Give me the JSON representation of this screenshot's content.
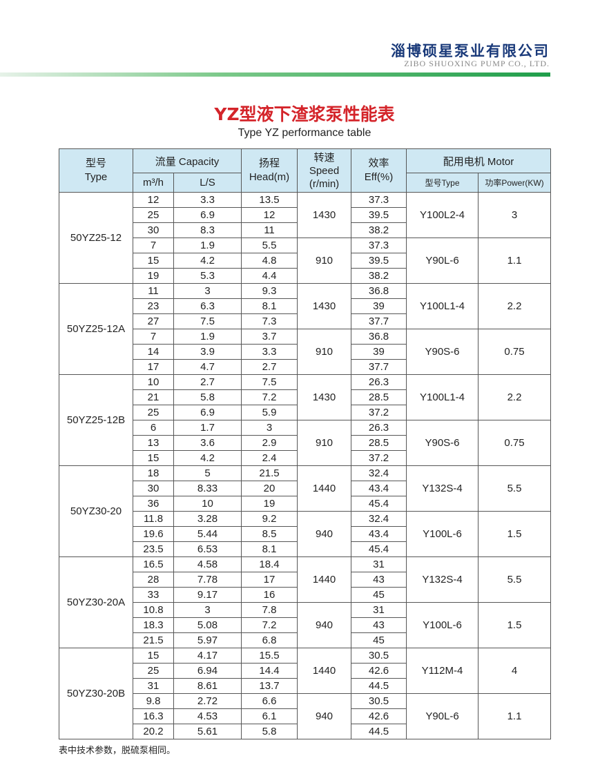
{
  "header": {
    "company_cn": "淄博硕星泵业有限公司",
    "company_en": "ZIBO SHUOXING PUMP CO., LTD."
  },
  "title": "YZ型液下渣浆泵性能表",
  "subtitle": "Type YZ performance table",
  "columns": {
    "type": "型号\nType",
    "capacity": "流量 Capacity",
    "m3h": "m³/h",
    "ls": "L/S",
    "head": "扬程\nHead(m)",
    "speed": "转速\nSpeed\n(r/min)",
    "eff": "效率\nEff(%)",
    "motor": "配用电机 Motor",
    "motor_type": "型号Type",
    "power": "功率Power(KW)"
  },
  "models": [
    {
      "name": "50YZ25-12",
      "subs": [
        {
          "speed": "1430",
          "motor": "Y100L2-4",
          "power": "3",
          "rows": [
            [
              "12",
              "3.3",
              "13.5",
              "37.3"
            ],
            [
              "25",
              "6.9",
              "12",
              "39.5"
            ],
            [
              "30",
              "8.3",
              "11",
              "38.2"
            ]
          ]
        },
        {
          "speed": "910",
          "motor": "Y90L-6",
          "power": "1.1",
          "rows": [
            [
              "7",
              "1.9",
              "5.5",
              "37.3"
            ],
            [
              "15",
              "4.2",
              "4.8",
              "39.5"
            ],
            [
              "19",
              "5.3",
              "4.4",
              "38.2"
            ]
          ]
        }
      ]
    },
    {
      "name": "50YZ25-12A",
      "subs": [
        {
          "speed": "1430",
          "motor": "Y100L1-4",
          "power": "2.2",
          "rows": [
            [
              "11",
              "3",
              "9.3",
              "36.8"
            ],
            [
              "23",
              "6.3",
              "8.1",
              "39"
            ],
            [
              "27",
              "7.5",
              "7.3",
              "37.7"
            ]
          ]
        },
        {
          "speed": "910",
          "motor": "Y90S-6",
          "power": "0.75",
          "rows": [
            [
              "7",
              "1.9",
              "3.7",
              "36.8"
            ],
            [
              "14",
              "3.9",
              "3.3",
              "39"
            ],
            [
              "17",
              "4.7",
              "2.7",
              "37.7"
            ]
          ]
        }
      ]
    },
    {
      "name": "50YZ25-12B",
      "subs": [
        {
          "speed": "1430",
          "motor": "Y100L1-4",
          "power": "2.2",
          "rows": [
            [
              "10",
              "2.7",
              "7.5",
              "26.3"
            ],
            [
              "21",
              "5.8",
              "7.2",
              "28.5"
            ],
            [
              "25",
              "6.9",
              "5.9",
              "37.2"
            ]
          ]
        },
        {
          "speed": "910",
          "motor": "Y90S-6",
          "power": "0.75",
          "rows": [
            [
              "6",
              "1.7",
              "3",
              "26.3"
            ],
            [
              "13",
              "3.6",
              "2.9",
              "28.5"
            ],
            [
              "15",
              "4.2",
              "2.4",
              "37.2"
            ]
          ]
        }
      ]
    },
    {
      "name": "50YZ30-20",
      "subs": [
        {
          "speed": "1440",
          "motor": "Y132S-4",
          "power": "5.5",
          "rows": [
            [
              "18",
              "5",
              "21.5",
              "32.4"
            ],
            [
              "30",
              "8.33",
              "20",
              "43.4"
            ],
            [
              "36",
              "10",
              "19",
              "45.4"
            ]
          ]
        },
        {
          "speed": "940",
          "motor": "Y100L-6",
          "power": "1.5",
          "rows": [
            [
              "11.8",
              "3.28",
              "9.2",
              "32.4"
            ],
            [
              "19.6",
              "5.44",
              "8.5",
              "43.4"
            ],
            [
              "23.5",
              "6.53",
              "8.1",
              "45.4"
            ]
          ]
        }
      ]
    },
    {
      "name": "50YZ30-20A",
      "subs": [
        {
          "speed": "1440",
          "motor": "Y132S-4",
          "power": "5.5",
          "rows": [
            [
              "16.5",
              "4.58",
              "18.4",
              "31"
            ],
            [
              "28",
              "7.78",
              "17",
              "43"
            ],
            [
              "33",
              "9.17",
              "16",
              "45"
            ]
          ]
        },
        {
          "speed": "940",
          "motor": "Y100L-6",
          "power": "1.5",
          "rows": [
            [
              "10.8",
              "3",
              "7.8",
              "31"
            ],
            [
              "18.3",
              "5.08",
              "7.2",
              "43"
            ],
            [
              "21.5",
              "5.97",
              "6.8",
              "45"
            ]
          ]
        }
      ]
    },
    {
      "name": "50YZ30-20B",
      "subs": [
        {
          "speed": "1440",
          "motor": "Y112M-4",
          "power": "4",
          "rows": [
            [
              "15",
              "4.17",
              "15.5",
              "30.5"
            ],
            [
              "25",
              "6.94",
              "14.4",
              "42.6"
            ],
            [
              "31",
              "8.61",
              "13.7",
              "44.5"
            ]
          ]
        },
        {
          "speed": "940",
          "motor": "Y90L-6",
          "power": "1.1",
          "rows": [
            [
              "9.8",
              "2.72",
              "6.6",
              "30.5"
            ],
            [
              "16.3",
              "4.53",
              "6.1",
              "42.6"
            ],
            [
              "20.2",
              "5.61",
              "5.8",
              "44.5"
            ]
          ]
        }
      ]
    }
  ],
  "note": "表中技术参数，脱硫泵相同。"
}
